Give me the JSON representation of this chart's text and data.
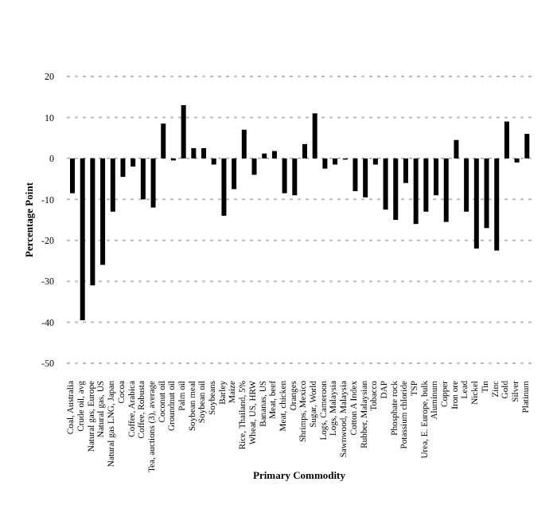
{
  "chart_data": {
    "type": "bar",
    "xlabel": "Primary Commodity",
    "ylabel": "Percentage Point",
    "categories": [
      "Coal, Australia",
      "Crude oil, avg",
      "Natural gas, Europe",
      "Natural gas, US",
      "Natural gas LNG, Japan",
      "Cocoa",
      "Coffee, Arabica",
      "Coffee, Robusta",
      "Tea, auctions (3), average",
      "Coconut oil",
      "Groundnut oil",
      "Palm oil",
      "Soybean meal",
      "Soybean oil",
      "Soybeans",
      "Barley",
      "Maize",
      "Rice, Thailand, 5%",
      "Wheat, US, HRW",
      "Bananas, US",
      "Meat, beef",
      "Meat, chicken",
      "Oranges",
      "Shrimps, Mexico",
      "Sugar, World",
      "Logs, Cameroon",
      "Logs, Malaysia",
      "Sawnwood, Malaysia",
      "Cotton A Index",
      "Rubber, Malaysian",
      "Tobacco",
      "DAP",
      "Phosphate rock",
      "Potassium chloride",
      "TSP",
      "Urea, E. Europe, bulk",
      "Aluminum",
      "Copper",
      "Iron ore",
      "Lead",
      "Nickel",
      "Tin",
      "Zinc",
      "Gold",
      "Silver",
      "Platinum"
    ],
    "values": [
      -8.5,
      -39.5,
      -31,
      -26,
      -13,
      -4.5,
      -2,
      -10,
      -12,
      8.5,
      -0.5,
      13,
      2.5,
      2.5,
      -1.5,
      -14,
      -7.5,
      7,
      -4,
      1.2,
      1.8,
      -8.5,
      -9,
      3.5,
      11,
      -2.5,
      -1.5,
      -0.3,
      -8,
      -9.5,
      -1.5,
      -12.5,
      -15,
      -6,
      -16,
      -13,
      -9,
      -15.5,
      4.5,
      -13,
      -22,
      -17,
      -22.5,
      9,
      -1,
      6
    ],
    "color": "#000000",
    "ylim": [
      -50,
      20
    ],
    "yticks": [
      -50,
      -40,
      -30,
      -20,
      -10,
      0,
      10,
      20
    ],
    "grid": "y"
  }
}
